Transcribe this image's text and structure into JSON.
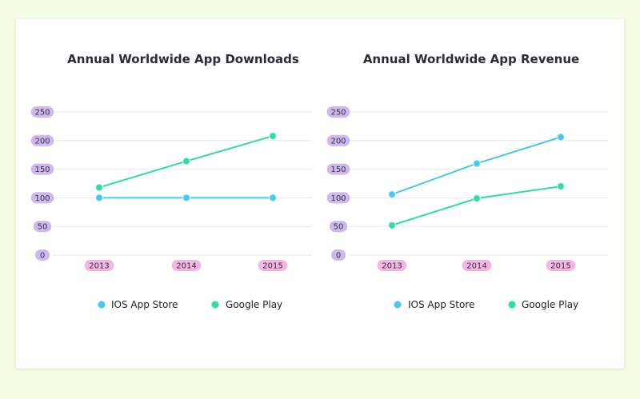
{
  "chart_data": [
    {
      "type": "line",
      "title": "Annual Worldwide App Downloads",
      "categories": [
        "2013",
        "2014",
        "2015"
      ],
      "y_ticks": [
        "0",
        "50",
        "100",
        "150",
        "200",
        "250"
      ],
      "ylim": [
        0,
        250
      ],
      "grid": true,
      "legend_position": "bottom",
      "series": [
        {
          "name": "IOS App Store",
          "color": "#46c8f0",
          "values": [
            100,
            100,
            100
          ]
        },
        {
          "name": "Google Play",
          "color": "#2fdca4",
          "values": [
            118,
            164,
            208
          ]
        }
      ]
    },
    {
      "type": "line",
      "title": "Annual Worldwide App Revenue",
      "categories": [
        "2013",
        "2014",
        "2015"
      ],
      "y_ticks": [
        "0",
        "50",
        "100",
        "150",
        "200",
        "250"
      ],
      "ylim": [
        0,
        250
      ],
      "grid": true,
      "legend_position": "bottom",
      "series": [
        {
          "name": "IOS App Store",
          "color": "#46c8f0",
          "values": [
            106,
            160,
            206
          ]
        },
        {
          "name": "Google Play",
          "color": "#2fdca4",
          "values": [
            52,
            99,
            120
          ]
        }
      ]
    }
  ]
}
